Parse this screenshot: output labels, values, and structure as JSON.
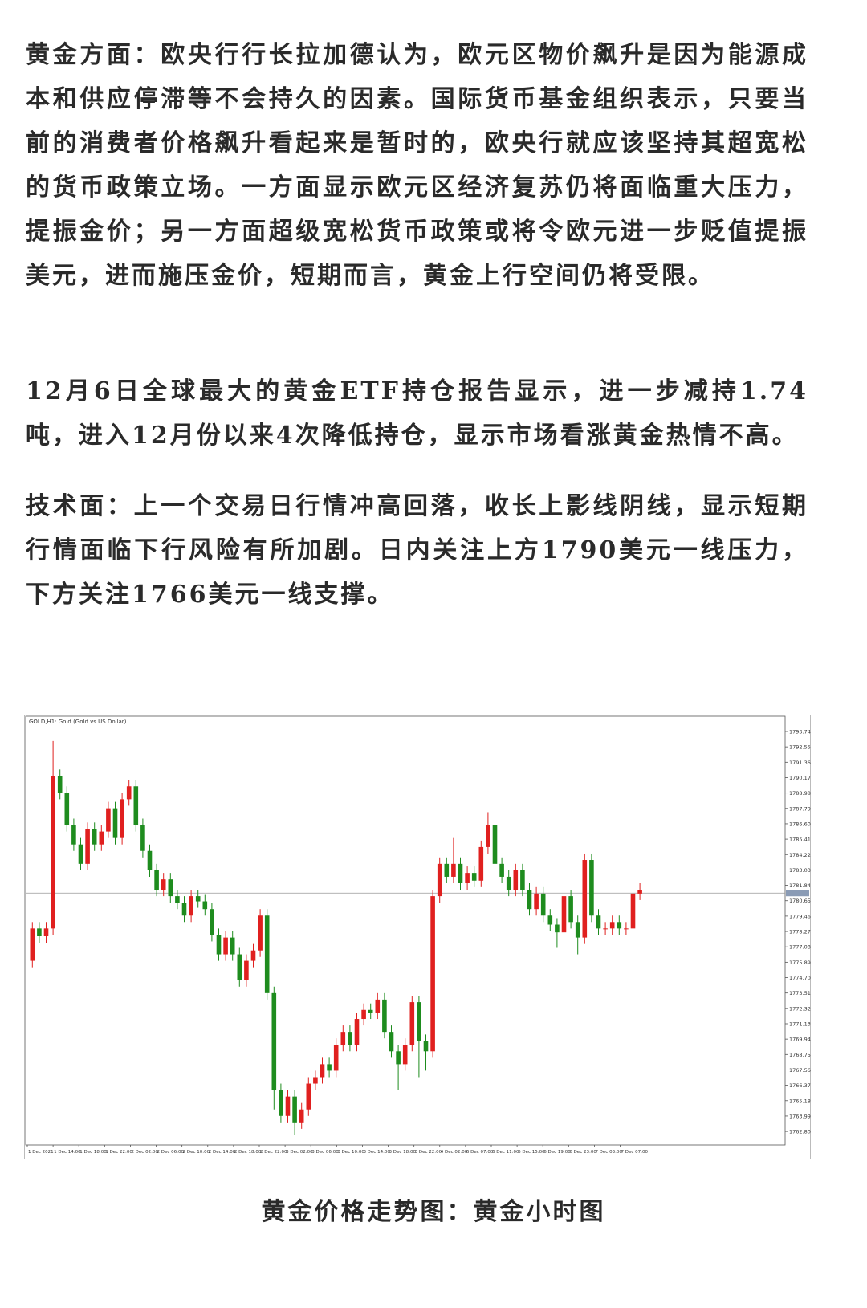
{
  "paragraphs": [
    "黄金方面：欧央行行长拉加德认为，欧元区物价飙升是因为能源成本和供应停滞等不会持久的因素。国际货币基金组织表示，只要当前的消费者价格飙升看起来是暂时的，欧央行就应该坚持其超宽松的货币政策立场。一方面显示欧元区经济复苏仍将面临重大压力，提振金价；另一方面超级宽松货币政策或将令欧元进一步贬值提振美元，进而施压金价，短期而言，黄金上行空间仍将受限。",
    "12月6日全球最大的黄金ETF持仓报告显示，进一步减持1.74吨，进入12月份以来4次降低持仓，显示市场看涨黄金热情不高。",
    "技术面：上一个交易日行情冲高回落，收长上影线阴线，显示短期行情面临下行风险有所加剧。日内关注上方1790美元一线压力，下方关注1766美元一线支撑。"
  ],
  "caption": "黄金价格走势图：黄金小时图",
  "chart_data": {
    "type": "candlestick",
    "title": "GOLD,H1: Gold (Gold vs US Dollar)",
    "up_color": "#e0201f",
    "down_color": "#1e8c1e",
    "ylim": [
      1761.75,
      1794.92
    ],
    "yticks": [
      1793.74,
      1792.55,
      1791.36,
      1790.17,
      1788.98,
      1787.79,
      {
        "value": 1786.6,
        "label": "1786.60"
      },
      1785.41,
      1784.22,
      1783.03,
      1781.84,
      1780.65,
      1779.46,
      1778.27,
      1777.08,
      1775.89,
      {
        "value": 1774.7,
        "label": "1774.70"
      },
      1773.51,
      1772.32,
      1771.13,
      1769.94,
      1768.75,
      1767.56,
      1766.37,
      1765.18,
      1763.99,
      {
        "value": 1762.8,
        "label": "1762.80"
      }
    ],
    "current_price": 1781.24,
    "xtick_labels": [
      "1 Dec 2021",
      "1 Dec 14:00",
      "1 Dec 18:00",
      "1 Dec 22:00",
      "2 Dec 02:00",
      "2 Dec 06:00",
      "2 Dec 10:00",
      "2 Dec 14:00",
      "2 Dec 18:00",
      "2 Dec 22:00",
      "3 Dec 02:00",
      "3 Dec 06:00",
      "3 Dec 10:00",
      "3 Dec 14:00",
      "3 Dec 18:00",
      "3 Dec 22:00",
      "4 Dec 02:00",
      "6 Dec 07:00",
      "6 Dec 11:00",
      "6 Dec 15:00",
      "6 Dec 19:00",
      "6 Dec 23:00",
      "7 Dec 03:00",
      "7 Dec 07:00"
    ],
    "ohlc": [
      [
        1776.0,
        1779.0,
        1775.5,
        1778.5
      ],
      [
        1778.5,
        1779.0,
        1777.4,
        1777.9
      ],
      [
        1777.9,
        1779.0,
        1777.4,
        1778.5
      ],
      [
        1778.5,
        1793.0,
        1778.0,
        1790.3
      ],
      [
        1790.3,
        1790.8,
        1788.5,
        1789.0
      ],
      [
        1789.0,
        1789.5,
        1786.0,
        1786.5
      ],
      [
        1786.5,
        1787.0,
        1784.5,
        1785.0
      ],
      [
        1785.0,
        1785.5,
        1783.0,
        1783.5
      ],
      [
        1783.5,
        1786.7,
        1783.0,
        1786.2
      ],
      [
        1786.2,
        1786.7,
        1784.5,
        1785.0
      ],
      [
        1785.0,
        1786.5,
        1784.5,
        1786.0
      ],
      [
        1786.0,
        1788.3,
        1785.5,
        1787.8
      ],
      [
        1787.8,
        1788.3,
        1785.0,
        1785.5
      ],
      [
        1785.5,
        1789.0,
        1785.0,
        1788.5
      ],
      [
        1788.5,
        1790.0,
        1788.0,
        1789.5
      ],
      [
        1789.5,
        1790.0,
        1786.0,
        1786.5
      ],
      [
        1786.5,
        1787.0,
        1784.0,
        1784.5
      ],
      [
        1784.5,
        1785.0,
        1782.5,
        1783.0
      ],
      [
        1783.0,
        1783.5,
        1781.0,
        1781.5
      ],
      [
        1781.5,
        1782.8,
        1781.0,
        1782.3
      ],
      [
        1782.3,
        1782.8,
        1780.5,
        1781.0
      ],
      [
        1781.0,
        1781.5,
        1780.0,
        1780.5
      ],
      [
        1780.5,
        1781.0,
        1779.0,
        1779.5
      ],
      [
        1779.5,
        1781.5,
        1779.0,
        1781.0
      ],
      [
        1781.0,
        1781.5,
        1780.1,
        1780.6
      ],
      [
        1780.6,
        1781.1,
        1779.5,
        1780.0
      ],
      [
        1780.0,
        1780.5,
        1777.5,
        1778.0
      ],
      [
        1778.0,
        1778.5,
        1776.0,
        1776.5
      ],
      [
        1776.5,
        1778.3,
        1776.0,
        1777.8
      ],
      [
        1777.8,
        1778.3,
        1776.0,
        1776.5
      ],
      [
        1776.5,
        1777.0,
        1774.0,
        1774.5
      ],
      [
        1774.5,
        1776.5,
        1774.0,
        1776.0
      ],
      [
        1776.0,
        1777.3,
        1775.5,
        1776.8
      ],
      [
        1776.8,
        1780.0,
        1776.3,
        1779.5
      ],
      [
        1779.5,
        1780.0,
        1773.0,
        1773.5
      ],
      [
        1773.5,
        1774.0,
        1764.5,
        1766.0
      ],
      [
        1766.0,
        1766.5,
        1763.5,
        1764.0
      ],
      [
        1764.0,
        1766.0,
        1763.5,
        1765.5
      ],
      [
        1765.5,
        1766.0,
        1762.5,
        1763.5
      ],
      [
        1763.5,
        1765.0,
        1763.0,
        1764.5
      ],
      [
        1764.5,
        1767.0,
        1764.0,
        1766.5
      ],
      [
        1766.5,
        1767.5,
        1766.0,
        1767.0
      ],
      [
        1767.0,
        1768.5,
        1766.5,
        1768.0
      ],
      [
        1768.0,
        1768.5,
        1767.0,
        1767.5
      ],
      [
        1767.5,
        1770.0,
        1767.0,
        1769.5
      ],
      [
        1769.5,
        1771.0,
        1769.0,
        1770.5
      ],
      [
        1770.5,
        1771.0,
        1769.0,
        1769.5
      ],
      [
        1769.5,
        1772.0,
        1769.0,
        1771.5
      ],
      [
        1771.5,
        1772.7,
        1771.0,
        1772.2
      ],
      [
        1772.2,
        1772.7,
        1771.5,
        1772.0
      ],
      [
        1772.0,
        1773.5,
        1771.5,
        1773.0
      ],
      [
        1773.0,
        1773.5,
        1770.0,
        1770.5
      ],
      [
        1770.5,
        1771.0,
        1768.5,
        1769.0
      ],
      [
        1769.0,
        1769.5,
        1766.0,
        1768.0
      ],
      [
        1768.0,
        1770.0,
        1767.5,
        1769.5
      ],
      [
        1769.5,
        1773.3,
        1769.0,
        1772.8
      ],
      [
        1772.8,
        1773.3,
        1767.0,
        1769.8
      ],
      [
        1769.8,
        1770.3,
        1767.5,
        1769.0
      ],
      [
        1769.0,
        1781.5,
        1768.5,
        1781.0
      ],
      [
        1781.0,
        1784.0,
        1780.5,
        1783.5
      ],
      [
        1783.5,
        1784.0,
        1782.0,
        1782.5
      ],
      [
        1782.5,
        1785.5,
        1782.0,
        1783.5
      ],
      [
        1783.5,
        1784.0,
        1781.5,
        1782.0
      ],
      [
        1782.0,
        1783.3,
        1781.5,
        1782.8
      ],
      [
        1782.8,
        1783.3,
        1781.7,
        1782.2
      ],
      [
        1782.2,
        1785.3,
        1781.7,
        1784.8
      ],
      [
        1784.8,
        1787.5,
        1784.3,
        1786.5
      ],
      [
        1786.5,
        1787.0,
        1783.0,
        1783.5
      ],
      [
        1783.5,
        1784.0,
        1782.0,
        1782.5
      ],
      [
        1782.5,
        1783.0,
        1781.0,
        1781.5
      ],
      [
        1781.5,
        1783.5,
        1781.0,
        1783.0
      ],
      [
        1783.0,
        1783.5,
        1781.0,
        1781.5
      ],
      [
        1781.5,
        1782.0,
        1779.5,
        1780.0
      ],
      [
        1780.0,
        1781.7,
        1779.5,
        1781.2
      ],
      [
        1781.2,
        1781.7,
        1779.0,
        1779.5
      ],
      [
        1779.5,
        1780.0,
        1778.3,
        1778.8
      ],
      [
        1778.8,
        1779.3,
        1777.0,
        1778.2
      ],
      [
        1778.2,
        1781.5,
        1777.7,
        1781.0
      ],
      [
        1781.0,
        1781.5,
        1778.5,
        1779.0
      ],
      [
        1779.0,
        1779.5,
        1776.5,
        1777.8
      ],
      [
        1777.8,
        1784.3,
        1777.3,
        1783.8
      ],
      [
        1783.8,
        1784.3,
        1779.0,
        1779.5
      ],
      [
        1779.5,
        1780.0,
        1778.0,
        1778.5
      ],
      [
        1778.5,
        1779.0,
        1778.0,
        1778.5
      ],
      [
        1778.5,
        1779.5,
        1778.0,
        1779.0
      ],
      [
        1779.0,
        1779.5,
        1778.0,
        1778.5
      ],
      [
        1778.5,
        1779.0,
        1778.0,
        1778.5
      ],
      [
        1778.5,
        1781.7,
        1778.0,
        1781.2
      ],
      [
        1781.2,
        1782.0,
        1780.7,
        1781.5
      ]
    ]
  }
}
